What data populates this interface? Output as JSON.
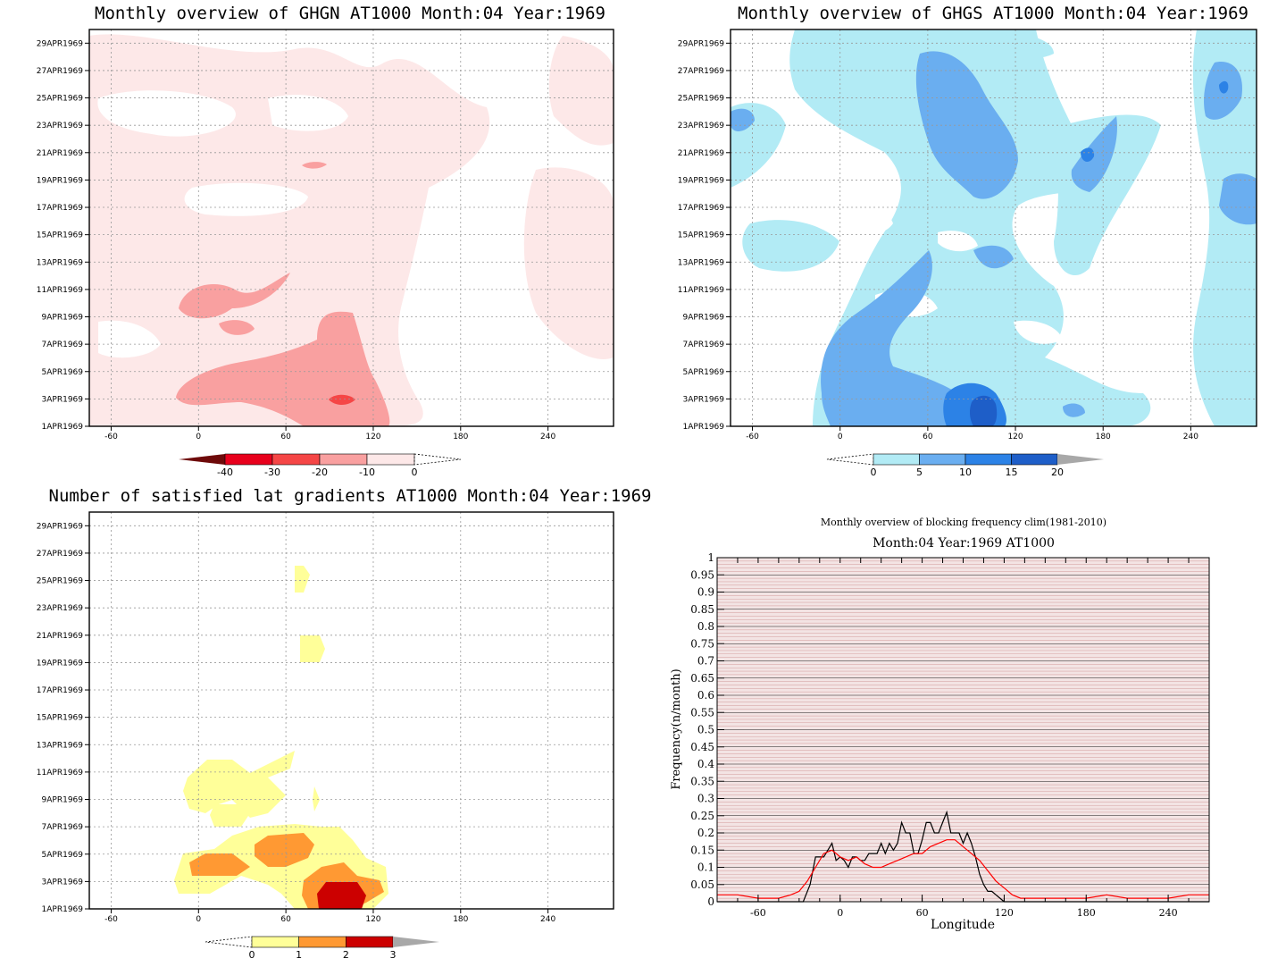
{
  "chart_data": [
    {
      "id": "ghgn",
      "type": "heatmap",
      "title": "Monthly overview of GHGN AT1000 Month:04 Year:1969",
      "x_ticks": [
        -60,
        0,
        60,
        120,
        180,
        240
      ],
      "xlim": [
        -75,
        285
      ],
      "y_ticks": [
        "1APR1969",
        "3APR1969",
        "5APR1969",
        "7APR1969",
        "9APR1969",
        "11APR1969",
        "13APR1969",
        "15APR1969",
        "17APR1969",
        "19APR1969",
        "21APR1969",
        "23APR1969",
        "25APR1969",
        "27APR1969",
        "29APR1969"
      ],
      "ylim": [
        1,
        30
      ],
      "colorbar": {
        "ticks": [
          "-40",
          "-30",
          "-20",
          "-10",
          "0"
        ],
        "colors": [
          "#6e0a0a",
          "#e8001c",
          "#f54646",
          "#f9a0a0",
          "#fde8e8"
        ],
        "extend": "both"
      }
    },
    {
      "id": "ghgs",
      "type": "heatmap",
      "title": "Monthly overview of GHGS AT1000 Month:04 Year:1969",
      "x_ticks": [
        -60,
        0,
        60,
        120,
        180,
        240
      ],
      "xlim": [
        -75,
        285
      ],
      "y_ticks": [
        "1APR1969",
        "3APR1969",
        "5APR1969",
        "7APR1969",
        "9APR1969",
        "11APR1969",
        "13APR1969",
        "15APR1969",
        "17APR1969",
        "19APR1969",
        "21APR1969",
        "23APR1969",
        "25APR1969",
        "27APR1969",
        "29APR1969"
      ],
      "ylim": [
        1,
        30
      ],
      "colorbar": {
        "ticks": [
          "0",
          "5",
          "10",
          "15",
          "20"
        ],
        "colors": [
          "#b2ebf5",
          "#6aaef0",
          "#2c82e6",
          "#1e5ec8",
          "#a8a8a8"
        ],
        "extend": "both"
      }
    },
    {
      "id": "sat",
      "type": "heatmap",
      "title": "Number of satisfied lat gradients AT1000 Month:04 Year:1969",
      "x_ticks": [
        -60,
        0,
        60,
        120,
        180,
        240
      ],
      "xlim": [
        -75,
        285
      ],
      "y_ticks": [
        "1APR1969",
        "3APR1969",
        "5APR1969",
        "7APR1969",
        "9APR1969",
        "11APR1969",
        "13APR1969",
        "15APR1969",
        "17APR1969",
        "19APR1969",
        "21APR1969",
        "23APR1969",
        "25APR1969",
        "27APR1969",
        "29APR1969"
      ],
      "ylim": [
        1,
        30
      ],
      "colorbar": {
        "ticks": [
          "0",
          "1",
          "2",
          "3"
        ],
        "colors": [
          "#ffff99",
          "#ff9933",
          "#cc0000",
          "#a8a8a8"
        ],
        "extend": "both"
      }
    },
    {
      "id": "freq",
      "type": "line",
      "title": "Monthly overview of blocking frequency clim(1981-2010)",
      "subtitle": "Month:04 Year:1969  AT1000",
      "xlabel": "Longitude",
      "ylabel": "Frequency(n/month)",
      "xlim": [
        -90,
        270
      ],
      "ylim": [
        0,
        1
      ],
      "x_ticks": [
        -60,
        0,
        60,
        120,
        180,
        240
      ],
      "y_ticks": [
        "0",
        "0.05",
        "0.1",
        "0.15",
        "0.2",
        "0.25",
        "0.3",
        "0.35",
        "0.4",
        "0.45",
        "0.5",
        "0.55",
        "0.6",
        "0.65",
        "0.7",
        "0.75",
        "0.8",
        "0.85",
        "0.9",
        "0.95",
        "1"
      ],
      "series": [
        {
          "color": "#000000",
          "x": [
            -90,
            -27,
            -22,
            -18,
            -15,
            -12,
            -9,
            -6,
            -3,
            0,
            3,
            6,
            9,
            12,
            15,
            18,
            21,
            24,
            27,
            30,
            33,
            36,
            39,
            42,
            45,
            48,
            51,
            54,
            57,
            60,
            63,
            66,
            69,
            72,
            75,
            78,
            81,
            84,
            87,
            90,
            93,
            96,
            99,
            102,
            105,
            108,
            111,
            114,
            117,
            120,
            123,
            126,
            270
          ],
          "y": [
            0,
            0,
            0.05,
            0.13,
            0.13,
            0.13,
            0.15,
            0.17,
            0.12,
            0.13,
            0.12,
            0.1,
            0.13,
            0.13,
            0.12,
            0.12,
            0.14,
            0.14,
            0.14,
            0.17,
            0.14,
            0.17,
            0.15,
            0.17,
            0.23,
            0.2,
            0.2,
            0.14,
            0.14,
            0.18,
            0.23,
            0.23,
            0.2,
            0.2,
            0.23,
            0.26,
            0.2,
            0.2,
            0.2,
            0.17,
            0.2,
            0.17,
            0.13,
            0.08,
            0.05,
            0.03,
            0.03,
            0.02,
            0.01,
            0.0,
            0,
            0,
            0
          ]
        },
        {
          "color": "#ff0000",
          "x": [
            -90,
            -75,
            -60,
            -45,
            -36,
            -30,
            -24,
            -18,
            -12,
            -6,
            0,
            6,
            12,
            18,
            24,
            30,
            36,
            42,
            48,
            54,
            60,
            66,
            72,
            78,
            84,
            90,
            96,
            102,
            108,
            114,
            120,
            126,
            132,
            138,
            150,
            165,
            180,
            195,
            210,
            225,
            240,
            255,
            270
          ],
          "y": [
            0.02,
            0.02,
            0.01,
            0.01,
            0.02,
            0.03,
            0.06,
            0.1,
            0.14,
            0.15,
            0.13,
            0.12,
            0.13,
            0.11,
            0.1,
            0.1,
            0.11,
            0.12,
            0.13,
            0.14,
            0.14,
            0.16,
            0.17,
            0.18,
            0.18,
            0.16,
            0.14,
            0.12,
            0.09,
            0.06,
            0.04,
            0.02,
            0.01,
            0.01,
            0.01,
            0.01,
            0.01,
            0.02,
            0.01,
            0.01,
            0.01,
            0.02,
            0.02
          ]
        }
      ]
    }
  ]
}
